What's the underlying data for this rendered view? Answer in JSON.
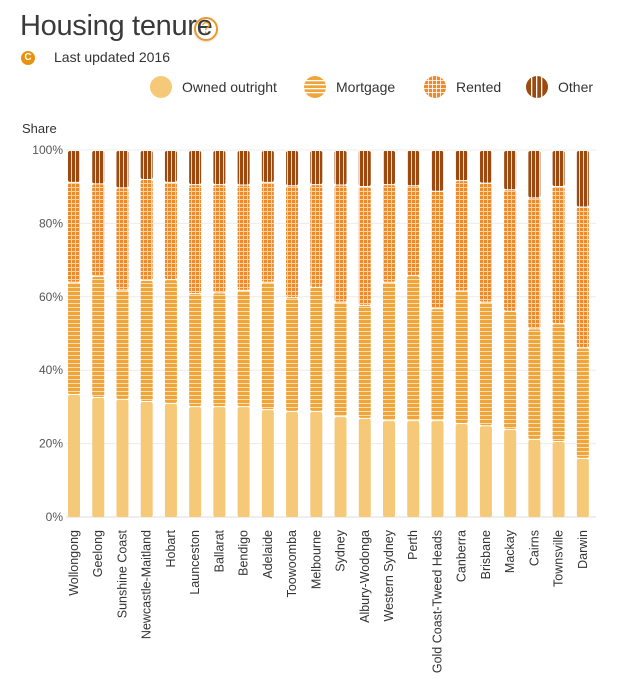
{
  "header": {
    "title": "Housing tenure",
    "help_icon": "question-circle-icon",
    "badge_icon": "c-circle-icon",
    "badge_letter": "C",
    "updated": "Last updated 2016"
  },
  "colors": {
    "owned": "#f5c978",
    "mortgage": "#f0a53a",
    "rented": "#ee8a2a",
    "other": "#9c4a10",
    "accent": "#e8930f"
  },
  "chart_data": {
    "type": "bar",
    "stacked": true,
    "title": "Housing tenure",
    "ylabel": "Share",
    "xlabel": "",
    "ylim": [
      0,
      100
    ],
    "yticks": [
      "0%",
      "20%",
      "40%",
      "60%",
      "80%",
      "100%"
    ],
    "ytick_values": [
      0,
      20,
      40,
      60,
      80,
      100
    ],
    "grid": true,
    "legend_position": "top-right",
    "categories": [
      "Wollongong",
      "Geelong",
      "Sunshine Coast",
      "Newcastle-Maitland",
      "Hobart",
      "Launceston",
      "Ballarat",
      "Bendigo",
      "Adelaide",
      "Toowoomba",
      "Melbourne",
      "Sydney",
      "Albury-Wodonga",
      "Western Sydney",
      "Perth",
      "Gold Coast-Tweed Heads",
      "Canberra",
      "Brisbane",
      "Mackay",
      "Cairns",
      "Townsville",
      "Darwin"
    ],
    "series": [
      {
        "name": "Owned outright",
        "key": "owned",
        "pattern": "solid",
        "values": [
          33.5,
          32.7,
          32.2,
          31.6,
          31.1,
          30.2,
          30.2,
          30.2,
          29.4,
          28.9,
          28.9,
          27.5,
          27.0,
          26.4,
          26.4,
          26.4,
          25.6,
          25.0,
          24.0,
          21.3,
          20.7,
          16.1
        ]
      },
      {
        "name": "Mortgage",
        "key": "mortgage",
        "pattern": "horizontal-stripes",
        "values": [
          30.6,
          33.0,
          29.8,
          33.0,
          33.7,
          30.8,
          31.0,
          31.7,
          34.7,
          31.0,
          33.8,
          31.2,
          30.8,
          37.7,
          39.5,
          30.5,
          36.1,
          33.7,
          32.2,
          30.1,
          32.1,
          30.1
        ]
      },
      {
        "name": "Rented",
        "key": "rented",
        "pattern": "grid",
        "values": [
          27.2,
          25.2,
          27.8,
          27.5,
          26.5,
          29.7,
          29.5,
          28.7,
          27.2,
          30.5,
          28.0,
          31.9,
          32.4,
          26.6,
          24.5,
          32.0,
          30.1,
          32.4,
          33.1,
          35.7,
          37.4,
          38.4
        ]
      },
      {
        "name": "Other",
        "key": "other",
        "pattern": "vertical-stripes",
        "values": [
          8.7,
          9.1,
          10.2,
          7.9,
          8.7,
          9.3,
          9.3,
          9.4,
          8.7,
          9.6,
          9.3,
          9.4,
          9.8,
          9.3,
          9.6,
          11.1,
          8.2,
          8.9,
          10.7,
          12.9,
          9.8,
          15.4
        ]
      }
    ]
  }
}
